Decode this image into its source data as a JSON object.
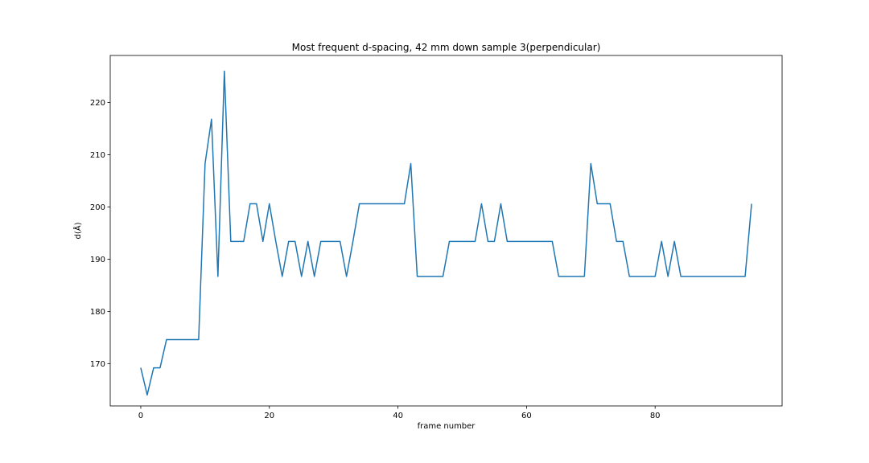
{
  "chart_data": {
    "type": "line",
    "title": "Most frequent d-spacing, 42 mm down sample 3(perpendicular)",
    "xlabel": "frame number",
    "ylabel": "d(Å)",
    "xlim": [
      -4.75,
      99.75
    ],
    "ylim": [
      161.9,
      229.0
    ],
    "xticks": [
      0,
      20,
      40,
      60,
      80
    ],
    "yticks": [
      170,
      180,
      190,
      200,
      210,
      220
    ],
    "grid": false,
    "series": [
      {
        "name": "d-spacing",
        "color": "#1f77b4",
        "x": [
          0,
          1,
          2,
          3,
          4,
          5,
          6,
          7,
          8,
          9,
          10,
          11,
          12,
          13,
          14,
          15,
          16,
          17,
          18,
          19,
          20,
          21,
          22,
          23,
          24,
          25,
          26,
          27,
          28,
          29,
          30,
          31,
          32,
          33,
          34,
          35,
          36,
          37,
          38,
          39,
          40,
          41,
          42,
          43,
          44,
          45,
          46,
          47,
          48,
          49,
          50,
          51,
          52,
          53,
          54,
          55,
          56,
          57,
          58,
          59,
          60,
          61,
          62,
          63,
          64,
          65,
          66,
          67,
          68,
          69,
          70,
          71,
          72,
          73,
          74,
          75,
          76,
          77,
          78,
          79,
          80,
          81,
          82,
          83,
          84,
          85,
          86,
          87,
          88,
          89,
          90,
          91,
          92,
          93,
          94,
          95
        ],
        "values": [
          169.2,
          164.0,
          169.2,
          169.2,
          174.6,
          174.6,
          174.6,
          174.6,
          174.6,
          174.6,
          208.3,
          216.8,
          186.7,
          226.0,
          193.4,
          193.4,
          193.4,
          200.6,
          200.6,
          193.4,
          200.6,
          193.4,
          186.7,
          193.4,
          193.4,
          186.7,
          193.4,
          186.7,
          193.4,
          193.4,
          193.4,
          193.4,
          186.7,
          193.4,
          200.6,
          200.6,
          200.6,
          200.6,
          200.6,
          200.6,
          200.6,
          200.6,
          208.3,
          186.7,
          186.7,
          186.7,
          186.7,
          186.7,
          193.4,
          193.4,
          193.4,
          193.4,
          193.4,
          200.6,
          193.4,
          193.4,
          200.6,
          193.4,
          193.4,
          193.4,
          193.4,
          193.4,
          193.4,
          193.4,
          193.4,
          186.7,
          186.7,
          186.7,
          186.7,
          186.7,
          208.3,
          200.6,
          200.6,
          200.6,
          193.4,
          193.4,
          186.7,
          186.7,
          186.7,
          186.7,
          186.7,
          193.4,
          186.7,
          193.4,
          186.7,
          186.7,
          186.7,
          186.7,
          186.7,
          186.7,
          186.7,
          186.7,
          186.7,
          186.7,
          186.7,
          200.6
        ]
      }
    ]
  }
}
